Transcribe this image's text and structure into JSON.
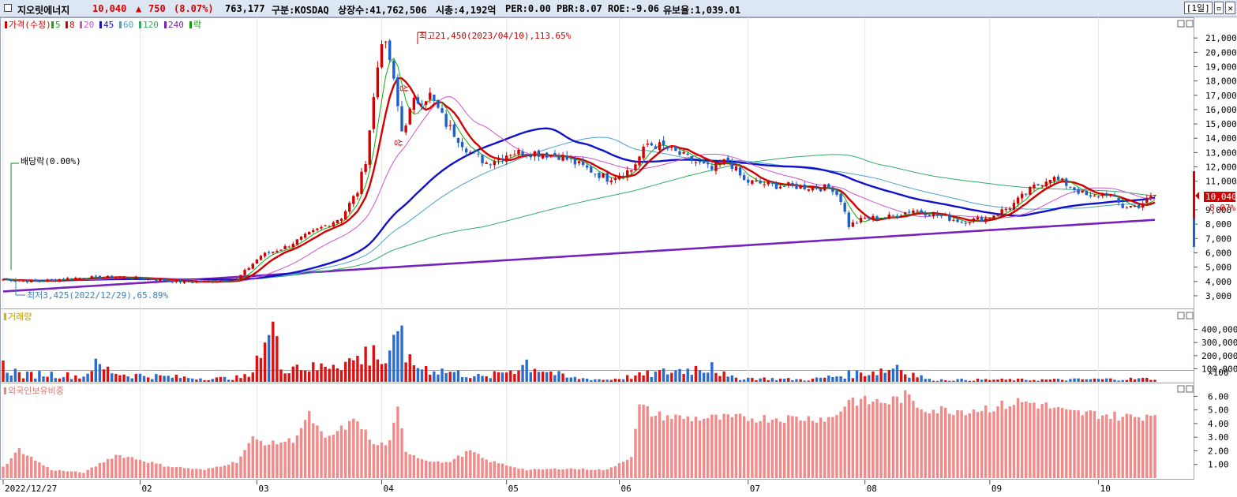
{
  "header": {
    "stock_name": "지오릿에너지",
    "price": "10,040",
    "change_arrow": "▲",
    "change": "750",
    "change_pct": "(8.07%)",
    "volume": "763,177",
    "market": "구분:KOSDAQ",
    "listed_shares": "상장수:41,762,506",
    "market_cap": "시총:4,192억",
    "per": "PER:0.00",
    "pbr": "PBR:8.07",
    "roe": "ROE:-9.06",
    "reserve": "유보율:1,039.01",
    "period_button": "[1일]",
    "up_color": "#d20000",
    "down_color": "#1f5fc8"
  },
  "price_panel": {
    "legend": [
      "가격(수정)",
      "5",
      "8",
      "20",
      "45",
      "60",
      "120",
      "240",
      "락"
    ],
    "legend_colors": [
      "#d40000",
      "#11aa11",
      "#d40000",
      "#cc55cc",
      "#1111cc",
      "#4aa3c8",
      "#33aa66",
      "#7722bb",
      "#119911"
    ],
    "high_annotation": "최고21,450(2023/04/10),113.65%",
    "low_annotation": "최저3,425(2022/12/29),65.89%",
    "dividend_annotation": "배당락(0.00%)",
    "upper_limit_marks": [
      "상",
      "상"
    ],
    "current_price_tag": "10,040",
    "current_pct_tag": "8.07%",
    "y_ticks": [
      "21,000",
      "20,000",
      "19,000",
      "18,000",
      "17,000",
      "16,000",
      "15,000",
      "14,000",
      "13,000",
      "12,000",
      "11,000",
      "9,000",
      "8,000",
      "7,000",
      "6,000",
      "5,000",
      "4,000",
      "3,000"
    ]
  },
  "volume_panel": {
    "legend": "거래량",
    "y_ticks": [
      "400,000",
      "300,000",
      "200,000",
      "100,000"
    ],
    "unit": "×100"
  },
  "foreign_panel": {
    "legend": "외국인보유비중",
    "y_ticks": [
      "6.00",
      "5.00",
      "4.00",
      "3.00",
      "2.00",
      "1.00"
    ]
  },
  "x_axis": {
    "labels": [
      "2022/12/27",
      "02",
      "03",
      "04",
      "05",
      "06",
      "07",
      "08",
      "09",
      "10"
    ]
  },
  "chart_data": {
    "type": "candlestick",
    "title": "지오릿에너지",
    "x_label_dates": [
      "2022/12/27",
      "02",
      "03",
      "04",
      "05",
      "06",
      "07",
      "08",
      "09",
      "10"
    ],
    "price_ylim": [
      2500,
      22000
    ],
    "volume_ylim": [
      0,
      470000
    ],
    "foreign_ylim": [
      0,
      6.6
    ],
    "close_anchors": [
      [
        0,
        4150
      ],
      [
        8,
        4000
      ],
      [
        18,
        4250
      ],
      [
        28,
        4300
      ],
      [
        38,
        4150
      ],
      [
        45,
        3950
      ],
      [
        52,
        4000
      ],
      [
        58,
        4150
      ],
      [
        64,
        5800
      ],
      [
        70,
        6400
      ],
      [
        76,
        7300
      ],
      [
        80,
        7900
      ],
      [
        84,
        8500
      ],
      [
        88,
        10300
      ],
      [
        90,
        12500
      ],
      [
        92,
        16800
      ],
      [
        93,
        19000
      ],
      [
        94,
        21000
      ],
      [
        96,
        19500
      ],
      [
        99,
        14500
      ],
      [
        102,
        16500
      ],
      [
        106,
        17000
      ],
      [
        110,
        15000
      ],
      [
        116,
        13000
      ],
      [
        120,
        12300
      ],
      [
        126,
        13000
      ],
      [
        132,
        13000
      ],
      [
        138,
        12800
      ],
      [
        144,
        12000
      ],
      [
        150,
        11200
      ],
      [
        156,
        11800
      ],
      [
        160,
        13600
      ],
      [
        164,
        13400
      ],
      [
        170,
        12600
      ],
      [
        176,
        11800
      ],
      [
        180,
        12500
      ],
      [
        184,
        11000
      ],
      [
        192,
        10700
      ],
      [
        200,
        10600
      ],
      [
        206,
        10500
      ],
      [
        208,
        9700
      ],
      [
        210,
        7900
      ],
      [
        214,
        8400
      ],
      [
        220,
        8500
      ],
      [
        226,
        9000
      ],
      [
        232,
        8600
      ],
      [
        238,
        8200
      ],
      [
        244,
        8400
      ],
      [
        250,
        9200
      ],
      [
        256,
        10600
      ],
      [
        260,
        11300
      ],
      [
        264,
        10800
      ],
      [
        270,
        9800
      ],
      [
        274,
        10200
      ],
      [
        278,
        9200
      ],
      [
        282,
        9300
      ],
      [
        286,
        10040
      ]
    ],
    "volume_anchors": [
      [
        0,
        150000
      ],
      [
        5,
        60000
      ],
      [
        10,
        80000
      ],
      [
        20,
        50000
      ],
      [
        22,
        160000
      ],
      [
        30,
        70000
      ],
      [
        40,
        50000
      ],
      [
        52,
        30000
      ],
      [
        58,
        40000
      ],
      [
        62,
        60000
      ],
      [
        63,
        200000
      ],
      [
        65,
        300000
      ],
      [
        67,
        460000
      ],
      [
        69,
        150000
      ],
      [
        72,
        170000
      ],
      [
        78,
        120000
      ],
      [
        82,
        200000
      ],
      [
        86,
        190000
      ],
      [
        92,
        280000
      ],
      [
        94,
        180000
      ],
      [
        96,
        220000
      ],
      [
        99,
        430000
      ],
      [
        101,
        170000
      ],
      [
        104,
        140000
      ],
      [
        110,
        100000
      ],
      [
        120,
        40000
      ],
      [
        130,
        170000
      ],
      [
        140,
        40000
      ],
      [
        150,
        20000
      ],
      [
        176,
        150000
      ],
      [
        180,
        40000
      ],
      [
        200,
        20000
      ],
      [
        222,
        130000
      ],
      [
        230,
        20000
      ],
      [
        260,
        20000
      ],
      [
        286,
        30000
      ]
    ],
    "volume_highlights": [
      [
        63,
        200000
      ],
      [
        65,
        300000
      ],
      [
        67,
        460000
      ],
      [
        92,
        280000
      ],
      [
        99,
        430000
      ],
      [
        130,
        170000
      ],
      [
        176,
        150000
      ],
      [
        222,
        130000
      ]
    ],
    "foreign_anchors": [
      [
        0,
        0.8
      ],
      [
        4,
        2.1
      ],
      [
        8,
        1.3
      ],
      [
        12,
        0.6
      ],
      [
        20,
        0.4
      ],
      [
        28,
        1.7
      ],
      [
        32,
        1.5
      ],
      [
        40,
        0.9
      ],
      [
        50,
        0.6
      ],
      [
        58,
        1.2
      ],
      [
        62,
        2.9
      ],
      [
        66,
        2.5
      ],
      [
        72,
        2.8
      ],
      [
        76,
        4.6
      ],
      [
        80,
        2.8
      ],
      [
        84,
        3.6
      ],
      [
        88,
        4.3
      ],
      [
        92,
        2.4
      ],
      [
        96,
        2.6
      ],
      [
        98,
        5.0
      ],
      [
        100,
        2.0
      ],
      [
        104,
        1.4
      ],
      [
        110,
        1.1
      ],
      [
        116,
        2.0
      ],
      [
        120,
        1.3
      ],
      [
        130,
        0.6
      ],
      [
        140,
        0.7
      ],
      [
        150,
        0.6
      ],
      [
        156,
        1.6
      ],
      [
        158,
        5.3
      ],
      [
        162,
        4.6
      ],
      [
        170,
        4.4
      ],
      [
        180,
        4.4
      ],
      [
        200,
        4.4
      ],
      [
        206,
        4.4
      ],
      [
        208,
        5.0
      ],
      [
        210,
        5.8
      ],
      [
        214,
        5.6
      ],
      [
        220,
        5.6
      ],
      [
        224,
        6.0
      ],
      [
        228,
        5.2
      ],
      [
        232,
        5.0
      ],
      [
        240,
        5.0
      ],
      [
        248,
        5.3
      ],
      [
        252,
        5.6
      ],
      [
        256,
        5.5
      ],
      [
        260,
        5.2
      ],
      [
        264,
        4.8
      ],
      [
        272,
        4.7
      ],
      [
        278,
        4.5
      ],
      [
        282,
        4.5
      ],
      [
        286,
        4.8
      ]
    ]
  }
}
